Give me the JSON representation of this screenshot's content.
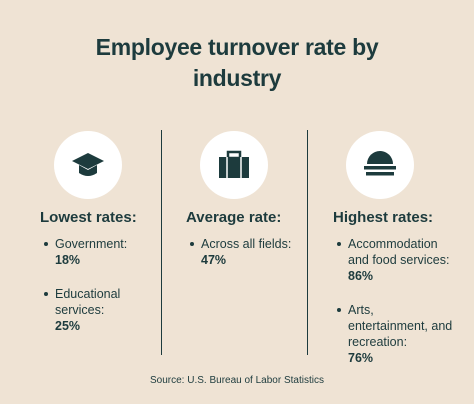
{
  "title": "Employee turnover rate by industry",
  "columns": [
    {
      "heading": "Lowest rates:",
      "items": [
        {
          "label": "Government:",
          "value": "18%"
        },
        {
          "label": "Educational services:",
          "value": "25%"
        }
      ]
    },
    {
      "heading": "Average rate:",
      "items": [
        {
          "label": "Across all fields:",
          "value": "47%"
        }
      ]
    },
    {
      "heading": "Highest rates:",
      "items": [
        {
          "label": "Accommodation and food services:",
          "value": "86%"
        },
        {
          "label": "Arts, entertainment, and recreation:",
          "value": "76%"
        }
      ]
    }
  ],
  "source": "Source: U.S. Bureau of Labor Statistics"
}
